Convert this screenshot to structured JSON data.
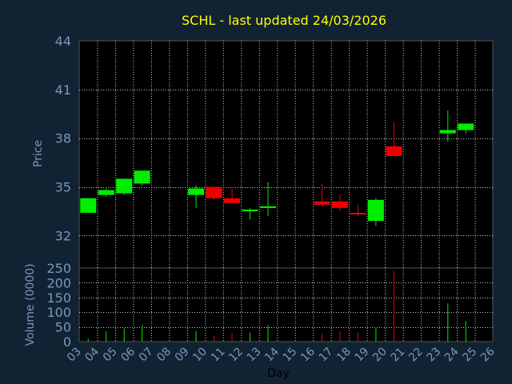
{
  "title": "SCHL - last updated 24/03/2026",
  "colors": {
    "background": "#112233",
    "text": "#7799bb",
    "title": "#ffff00",
    "up": "#00ee00",
    "down": "#ee0000",
    "grid": "#c8c8c8"
  },
  "chart_data": [
    {
      "type": "candlestick",
      "ylabel": "Price",
      "ylim": [
        30,
        44
      ],
      "yticks": [
        "32",
        "35",
        "38",
        "41",
        "44"
      ],
      "grid": true,
      "candles": [
        {
          "x": "03",
          "open": 33.4,
          "high": 34.3,
          "low": 33.4,
          "close": 34.3
        },
        {
          "x": "04",
          "open": 34.5,
          "high": 34.9,
          "low": 34.4,
          "close": 34.8
        },
        {
          "x": "05",
          "open": 34.6,
          "high": 35.5,
          "low": 34.5,
          "close": 35.5
        },
        {
          "x": "06",
          "open": 35.2,
          "high": 36.0,
          "low": 35.1,
          "close": 36.0
        },
        {
          "x": "09",
          "open": 34.5,
          "high": 35.1,
          "low": 33.7,
          "close": 34.9
        },
        {
          "x": "10",
          "open": 35.0,
          "high": 35.0,
          "low": 34.2,
          "close": 34.3
        },
        {
          "x": "11",
          "open": 34.3,
          "high": 34.9,
          "low": 34.0,
          "close": 34.0
        },
        {
          "x": "12",
          "open": 33.5,
          "high": 33.7,
          "low": 33.0,
          "close": 33.6
        },
        {
          "x": "13",
          "open": 33.7,
          "high": 35.3,
          "low": 33.2,
          "close": 33.8
        },
        {
          "x": "16",
          "open": 34.1,
          "high": 35.2,
          "low": 33.8,
          "close": 33.9
        },
        {
          "x": "17",
          "open": 34.1,
          "high": 34.5,
          "low": 33.5,
          "close": 33.7
        },
        {
          "x": "18",
          "open": 33.4,
          "high": 33.9,
          "low": 33.2,
          "close": 33.3
        },
        {
          "x": "19",
          "open": 32.9,
          "high": 34.3,
          "low": 32.6,
          "close": 34.2
        },
        {
          "x": "20",
          "open": 37.5,
          "high": 39.0,
          "low": 36.9,
          "close": 36.9
        },
        {
          "x": "23",
          "open": 38.3,
          "high": 39.7,
          "low": 37.8,
          "close": 38.5
        },
        {
          "x": "24",
          "open": 38.5,
          "high": 38.9,
          "low": 38.3,
          "close": 38.9
        }
      ]
    },
    {
      "type": "bar",
      "ylabel": "Volume (0000)",
      "xlabel": "Day",
      "ylim": [
        0,
        250
      ],
      "yticks": [
        "0",
        "50",
        "100",
        "150",
        "200",
        "250"
      ],
      "grid": true,
      "categories": [
        "03",
        "04",
        "05",
        "06",
        "07",
        "08",
        "09",
        "10",
        "11",
        "12",
        "13",
        "14",
        "15",
        "16",
        "17",
        "18",
        "19",
        "20",
        "21",
        "22",
        "23",
        "24",
        "25"
      ],
      "bars": [
        {
          "x": "03",
          "value": 10,
          "direction": "up"
        },
        {
          "x": "04",
          "value": 35,
          "direction": "up"
        },
        {
          "x": "05",
          "value": 45,
          "direction": "up"
        },
        {
          "x": "06",
          "value": 55,
          "direction": "up"
        },
        {
          "x": "09",
          "value": 35,
          "direction": "up"
        },
        {
          "x": "10",
          "value": 20,
          "direction": "down"
        },
        {
          "x": "11",
          "value": 30,
          "direction": "down"
        },
        {
          "x": "12",
          "value": 30,
          "direction": "up"
        },
        {
          "x": "13",
          "value": 55,
          "direction": "up"
        },
        {
          "x": "16",
          "value": 25,
          "direction": "down"
        },
        {
          "x": "17",
          "value": 35,
          "direction": "down"
        },
        {
          "x": "18",
          "value": 30,
          "direction": "down"
        },
        {
          "x": "19",
          "value": 45,
          "direction": "up"
        },
        {
          "x": "20",
          "value": 240,
          "direction": "down"
        },
        {
          "x": "23",
          "value": 130,
          "direction": "up"
        },
        {
          "x": "24",
          "value": 70,
          "direction": "up"
        }
      ]
    }
  ]
}
